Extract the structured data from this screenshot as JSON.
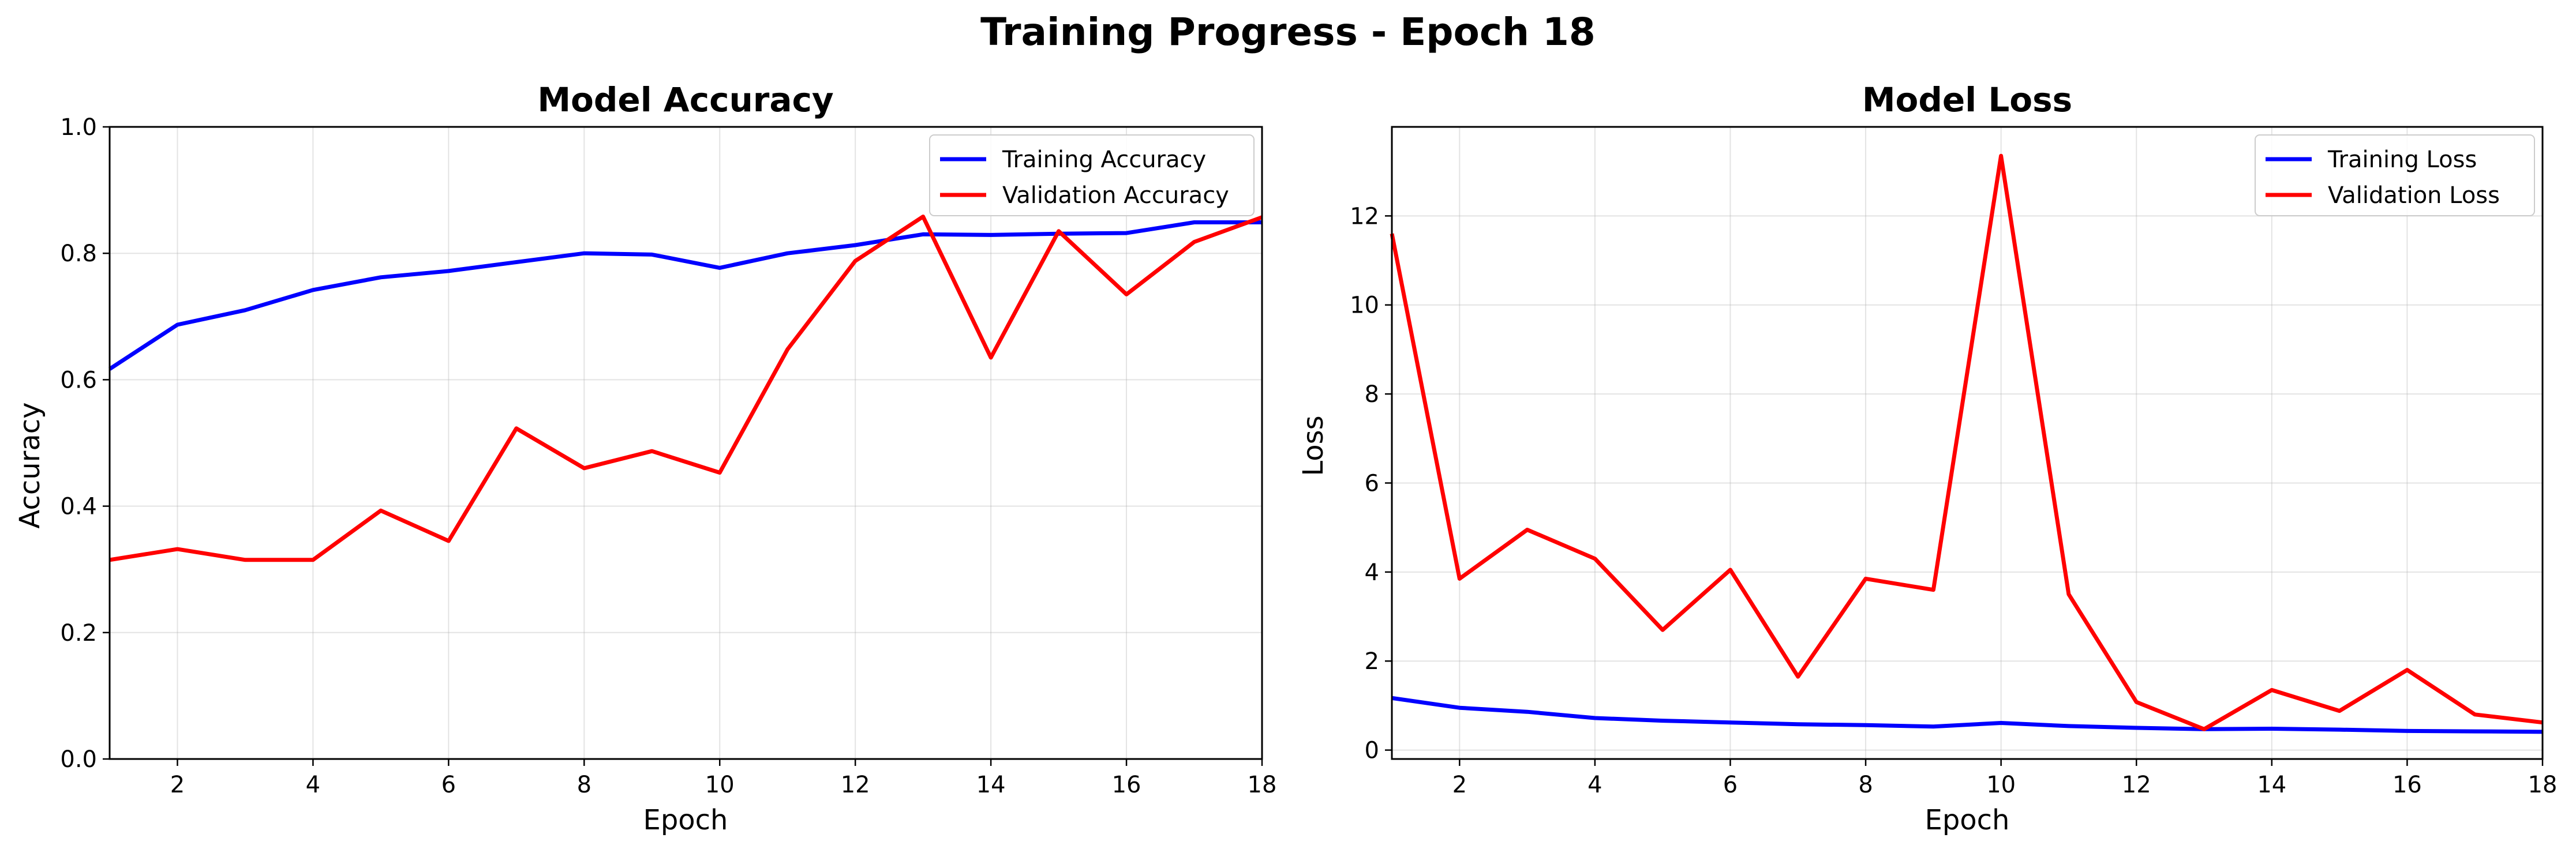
{
  "figure": {
    "title": "Training Progress - Epoch 18"
  },
  "chart_data": [
    {
      "type": "line",
      "title": "Model Accuracy",
      "xlabel": "Epoch",
      "ylabel": "Accuracy",
      "xlim": [
        1,
        18
      ],
      "ylim": [
        0,
        1
      ],
      "xticks": [
        2,
        4,
        6,
        8,
        10,
        12,
        14,
        16,
        18
      ],
      "yticks": [
        0.0,
        0.2,
        0.4,
        0.6,
        0.8,
        1.0
      ],
      "ytick_labels": [
        "0.0",
        "0.2",
        "0.4",
        "0.6",
        "0.8",
        "1.0"
      ],
      "grid": true,
      "legend_position": "upper right",
      "x": [
        1,
        2,
        3,
        4,
        5,
        6,
        7,
        8,
        9,
        10,
        11,
        12,
        13,
        14,
        15,
        16,
        17,
        18
      ],
      "series": [
        {
          "name": "Training Accuracy",
          "color": "#0000ff",
          "values": [
            0.617,
            0.687,
            0.71,
            0.742,
            0.762,
            0.772,
            0.786,
            0.8,
            0.798,
            0.777,
            0.8,
            0.813,
            0.83,
            0.829,
            0.831,
            0.832,
            0.849,
            0.849
          ]
        },
        {
          "name": "Validation Accuracy",
          "color": "#ff0000",
          "values": [
            0.315,
            0.332,
            0.315,
            0.315,
            0.393,
            0.345,
            0.523,
            0.46,
            0.487,
            0.453,
            0.648,
            0.788,
            0.858,
            0.635,
            0.835,
            0.735,
            0.818,
            0.857
          ]
        }
      ]
    },
    {
      "type": "line",
      "title": "Model Loss",
      "xlabel": "Epoch",
      "ylabel": "Loss",
      "xlim": [
        1,
        18
      ],
      "ylim": [
        -0.2,
        14
      ],
      "xticks": [
        2,
        4,
        6,
        8,
        10,
        12,
        14,
        16,
        18
      ],
      "yticks": [
        0,
        2,
        4,
        6,
        8,
        10,
        12
      ],
      "ytick_labels": [
        "0",
        "2",
        "4",
        "6",
        "8",
        "10",
        "12"
      ],
      "grid": true,
      "legend_position": "upper right",
      "x": [
        1,
        2,
        3,
        4,
        5,
        6,
        7,
        8,
        9,
        10,
        11,
        12,
        13,
        14,
        15,
        16,
        17,
        18
      ],
      "series": [
        {
          "name": "Training Loss",
          "color": "#0000ff",
          "values": [
            1.17,
            0.95,
            0.86,
            0.72,
            0.66,
            0.62,
            0.58,
            0.56,
            0.53,
            0.61,
            0.54,
            0.5,
            0.47,
            0.48,
            0.46,
            0.43,
            0.42,
            0.41
          ]
        },
        {
          "name": "Validation Loss",
          "color": "#ff0000",
          "values": [
            11.6,
            3.85,
            4.95,
            4.3,
            2.7,
            4.05,
            1.65,
            3.85,
            3.6,
            13.35,
            3.5,
            1.08,
            0.47,
            1.35,
            0.88,
            1.8,
            0.8,
            0.62
          ]
        }
      ]
    }
  ]
}
